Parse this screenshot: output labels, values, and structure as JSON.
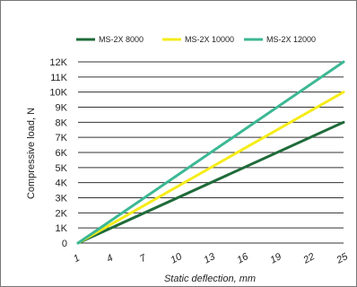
{
  "chart_data": {
    "type": "line",
    "xlabel": "Static deflection, mm",
    "ylabel": "Compressive load, N",
    "x_ticks": [
      "1",
      "4",
      "7",
      "10",
      "13",
      "16",
      "19",
      "22",
      "25"
    ],
    "y_ticks": [
      "0",
      "1K",
      "2K",
      "3K",
      "4K",
      "5K",
      "6K",
      "7K",
      "8K",
      "9K",
      "10K",
      "11K",
      "12K"
    ],
    "xlim": [
      1,
      25
    ],
    "ylim": [
      0,
      12000
    ],
    "grid": "horizontal",
    "legend_position": "top",
    "series": [
      {
        "name": "MS-2X 8000",
        "color": "#1f6b3a",
        "x": [
          1,
          25
        ],
        "y": [
          0,
          8000
        ]
      },
      {
        "name": "MS-2X 10000",
        "color": "#f5ec1a",
        "x": [
          1,
          25
        ],
        "y": [
          0,
          10000
        ]
      },
      {
        "name": "MS-2X 12000",
        "color": "#3cb894",
        "x": [
          1,
          25
        ],
        "y": [
          0,
          12000
        ]
      }
    ]
  }
}
